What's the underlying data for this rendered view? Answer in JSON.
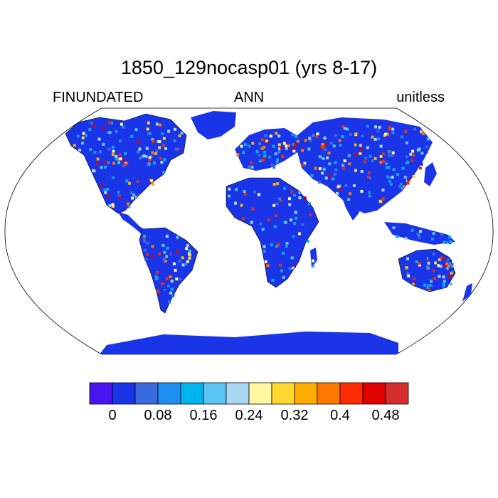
{
  "header": {
    "title": "1850_129nocasp01 (yrs 8-17)",
    "left": "FINUNDATED",
    "center": "ANN",
    "right": "unitless"
  },
  "colorbar": {
    "colors": [
      "#4a14f0",
      "#1a34e8",
      "#3a6ae0",
      "#1e8ef2",
      "#00b4f0",
      "#5ac4f4",
      "#aad8f4",
      "#fff8a0",
      "#ffd82e",
      "#ffac00",
      "#ff7800",
      "#ff2c00",
      "#e00000",
      "#d42e2e"
    ],
    "tick_labels": [
      "0",
      "0.08",
      "0.16",
      "0.24",
      "0.32",
      "0.4",
      "0.48"
    ]
  },
  "map": {
    "projection": "Robinson",
    "ocean_color": "#ffffff",
    "land_base_color": "#1a34e8"
  }
}
